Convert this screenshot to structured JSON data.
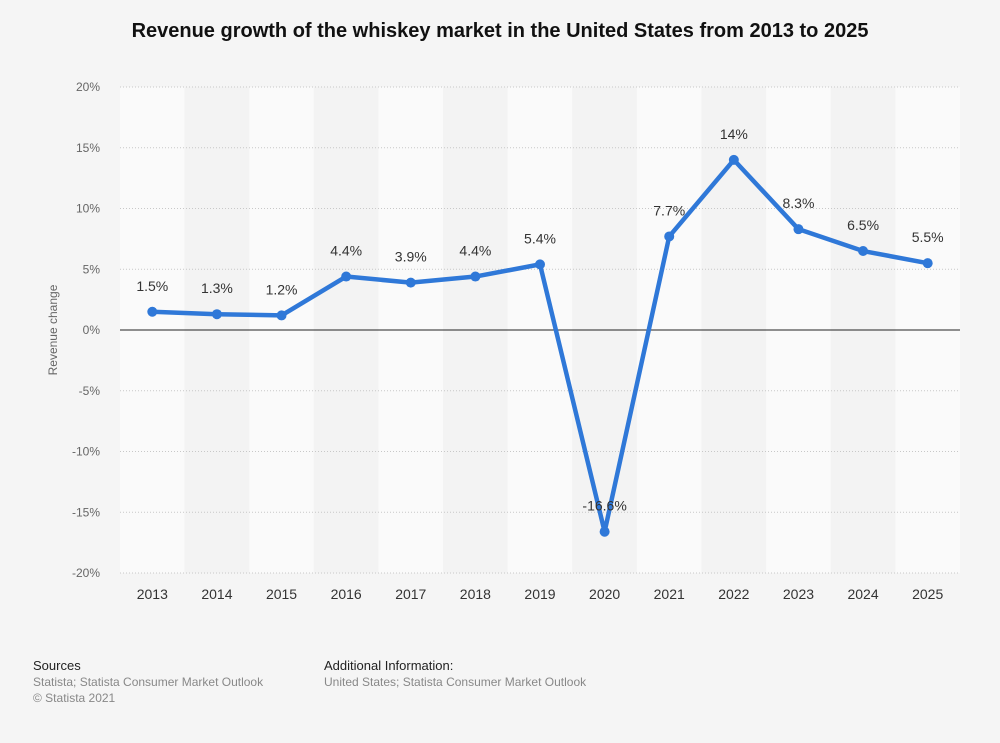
{
  "chart_data": {
    "type": "line",
    "title": "Revenue growth of the whiskey market in the United States from 2013 to 2025",
    "ylabel": "Revenue change",
    "xlabel": "",
    "categories": [
      "2013",
      "2014",
      "2015",
      "2016",
      "2017",
      "2018",
      "2019",
      "2020",
      "2021",
      "2022",
      "2023",
      "2024",
      "2025"
    ],
    "series": [
      {
        "values": [
          1.5,
          1.3,
          1.2,
          4.4,
          3.9,
          4.4,
          5.4,
          -16.6,
          7.7,
          14,
          8.3,
          6.5,
          5.5
        ]
      }
    ],
    "data_labels": [
      "1.5%",
      "1.3%",
      "1.2%",
      "4.4%",
      "3.9%",
      "4.4%",
      "5.4%",
      "-16.6%",
      "7.7%",
      "14%",
      "8.3%",
      "6.5%",
      "5.5%"
    ],
    "ylim": [
      -20,
      20
    ],
    "yticks": [
      20,
      15,
      10,
      5,
      0,
      -5,
      -10,
      -15,
      -20
    ],
    "ytick_labels": [
      "20%",
      "15%",
      "10%",
      "5%",
      "0%",
      "-5%",
      "-10%",
      "-15%",
      "-20%"
    ],
    "grid": true,
    "legend": "none",
    "line_color": "#2f78d8"
  },
  "footer": {
    "sources_title": "Sources",
    "sources_line1": "Statista; Statista Consumer Market Outlook",
    "sources_line2": "© Statista 2021",
    "additional_title": "Additional Information:",
    "additional_line1": "United States; Statista Consumer Market Outlook"
  }
}
